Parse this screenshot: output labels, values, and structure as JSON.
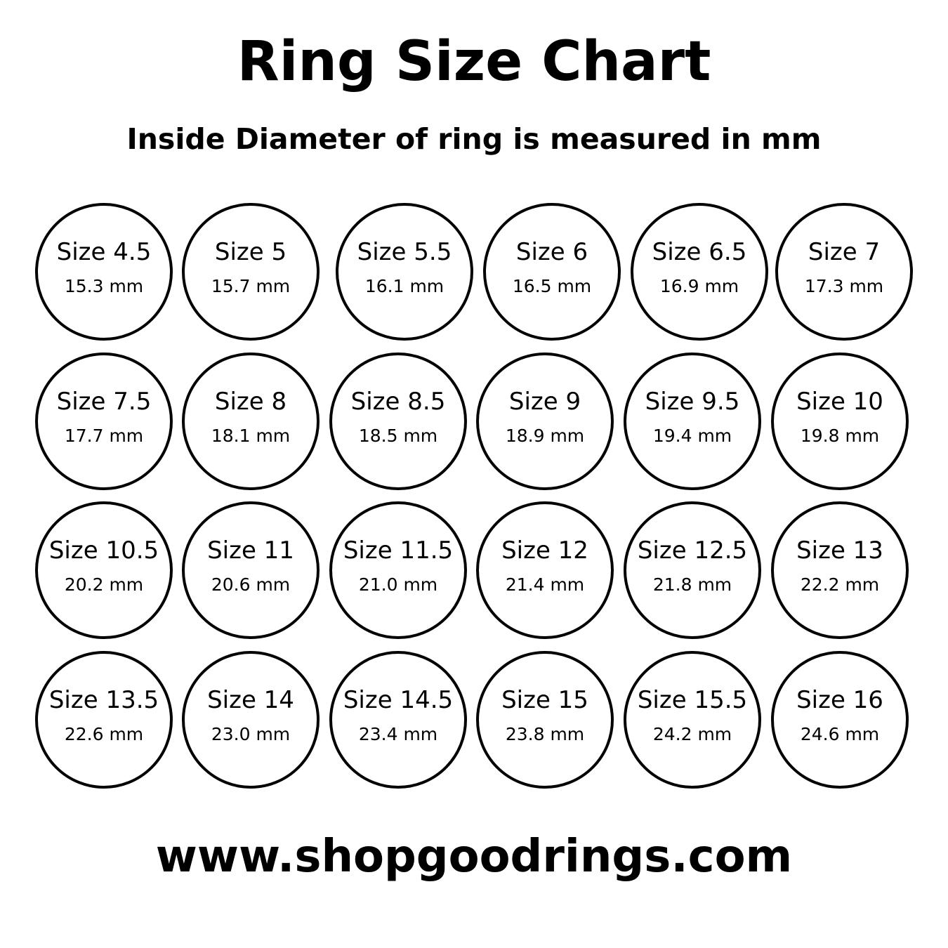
{
  "title": "Ring Size Chart",
  "subtitle": "Inside Diameter of ring is measured in mm",
  "footer_url": "www.shopgoodrings.com",
  "rings": [
    {
      "size": "Size 4.5",
      "mm": "15.3 mm"
    },
    {
      "size": "Size 5",
      "mm": "15.7 mm"
    },
    {
      "size": "Size 5.5",
      "mm": "16.1 mm"
    },
    {
      "size": "Size 6",
      "mm": "16.5 mm"
    },
    {
      "size": "Size 6.5",
      "mm": "16.9 mm"
    },
    {
      "size": "Size 7",
      "mm": "17.3 mm"
    },
    {
      "size": "Size 7.5",
      "mm": "17.7 mm"
    },
    {
      "size": "Size 8",
      "mm": "18.1 mm"
    },
    {
      "size": "Size 8.5",
      "mm": "18.5 mm"
    },
    {
      "size": "Size 9",
      "mm": "18.9 mm"
    },
    {
      "size": "Size 9.5",
      "mm": "19.4 mm"
    },
    {
      "size": "Size 10",
      "mm": "19.8 mm"
    },
    {
      "size": "Size 10.5",
      "mm": "20.2 mm"
    },
    {
      "size": "Size 11",
      "mm": "20.6 mm"
    },
    {
      "size": "Size 11.5",
      "mm": "21.0 mm"
    },
    {
      "size": "Size 12",
      "mm": "21.4 mm"
    },
    {
      "size": "Size 12.5",
      "mm": "21.8 mm"
    },
    {
      "size": "Size 13",
      "mm": "22.2 mm"
    },
    {
      "size": "Size 13.5",
      "mm": "22.6 mm"
    },
    {
      "size": "Size 14",
      "mm": "23.0 mm"
    },
    {
      "size": "Size 14.5",
      "mm": "23.4 mm"
    },
    {
      "size": "Size 15",
      "mm": "23.8 mm"
    },
    {
      "size": "Size 15.5",
      "mm": "24.2 mm"
    },
    {
      "size": "Size 16",
      "mm": "24.6 mm"
    }
  ]
}
